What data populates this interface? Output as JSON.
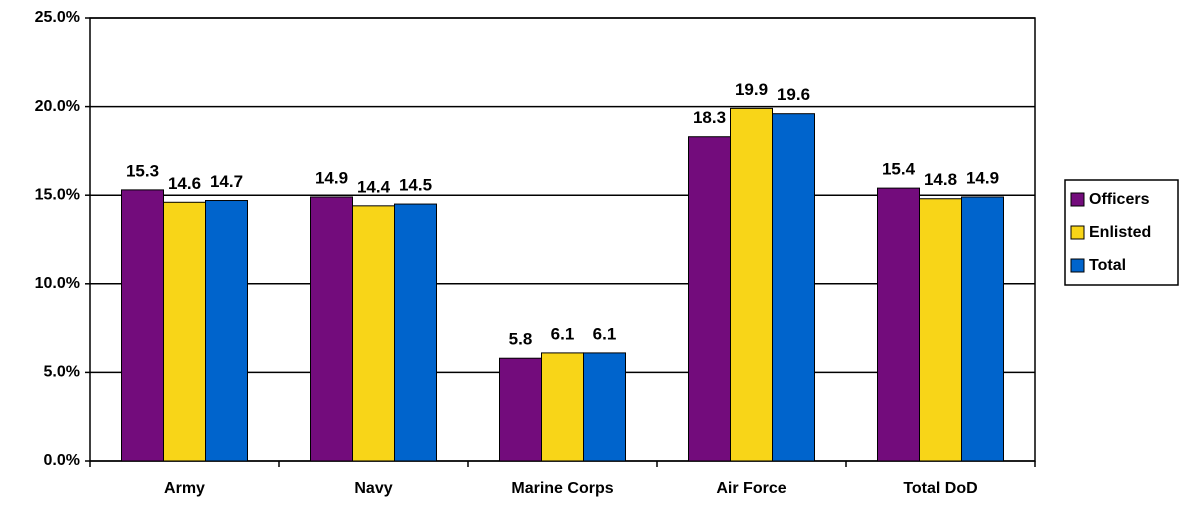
{
  "chart_data": {
    "type": "bar",
    "categories": [
      "Army",
      "Navy",
      "Marine Corps",
      "Air Force",
      "Total DoD"
    ],
    "series": [
      {
        "name": "Officers",
        "color": "#730c7c",
        "values": [
          15.3,
          14.9,
          5.8,
          18.3,
          15.4
        ]
      },
      {
        "name": "Enlisted",
        "color": "#f8d518",
        "values": [
          14.6,
          14.4,
          6.1,
          19.9,
          14.8
        ]
      },
      {
        "name": "Total",
        "color": "#0064cc",
        "values": [
          14.7,
          14.5,
          6.1,
          19.6,
          14.9
        ]
      }
    ],
    "ylim": [
      0,
      25
    ],
    "yticks": [
      {
        "value": 0,
        "label": "0.0%"
      },
      {
        "value": 5,
        "label": "5.0%"
      },
      {
        "value": 10,
        "label": "10.0%"
      },
      {
        "value": 15,
        "label": "15.0%"
      },
      {
        "value": 20,
        "label": "20.0%"
      },
      {
        "value": 25,
        "label": "25.0%"
      }
    ],
    "grid": true,
    "legend": "right"
  }
}
